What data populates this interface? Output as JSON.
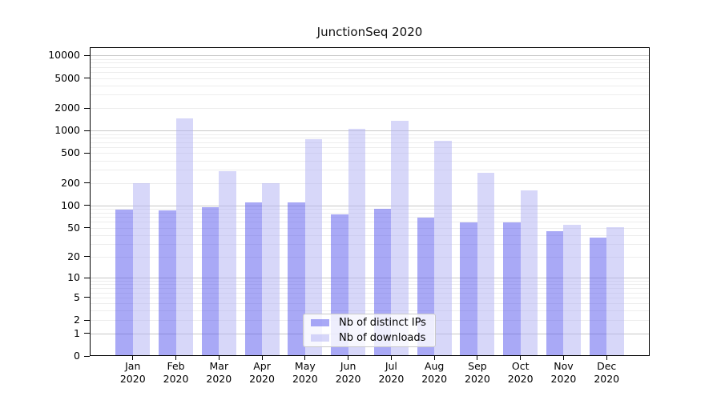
{
  "title": "JunctionSeq 2020",
  "chart_data": {
    "type": "bar",
    "title": "JunctionSeq 2020",
    "x_tick_months": [
      "Jan",
      "Feb",
      "Mar",
      "Apr",
      "May",
      "Jun",
      "Jul",
      "Aug",
      "Sep",
      "Oct",
      "Nov",
      "Dec"
    ],
    "x_tick_year": "2020",
    "series": [
      {
        "name": "Nb of distinct IPs",
        "color": "#5353ed",
        "alpha": 0.5,
        "values": [
          85,
          83,
          93,
          107,
          108,
          74,
          87,
          67,
          58,
          58,
          44,
          36
        ]
      },
      {
        "name": "Nb of downloads",
        "color": "#b0b0f4",
        "alpha": 0.5,
        "values": [
          196,
          1430,
          282,
          194,
          742,
          1030,
          1316,
          711,
          265,
          156,
          54,
          50
        ]
      }
    ],
    "y_ticks": [
      0,
      1,
      2,
      5,
      10,
      20,
      50,
      100,
      200,
      500,
      1000,
      2000,
      5000,
      10000
    ],
    "y_scale": "log10(1+x)",
    "ylim": [
      0,
      10000
    ],
    "grid": "on",
    "grid_major_color": "#c8c8c8",
    "grid_minor_color": "#ededed",
    "legend_position": "inside-bottom-center"
  }
}
